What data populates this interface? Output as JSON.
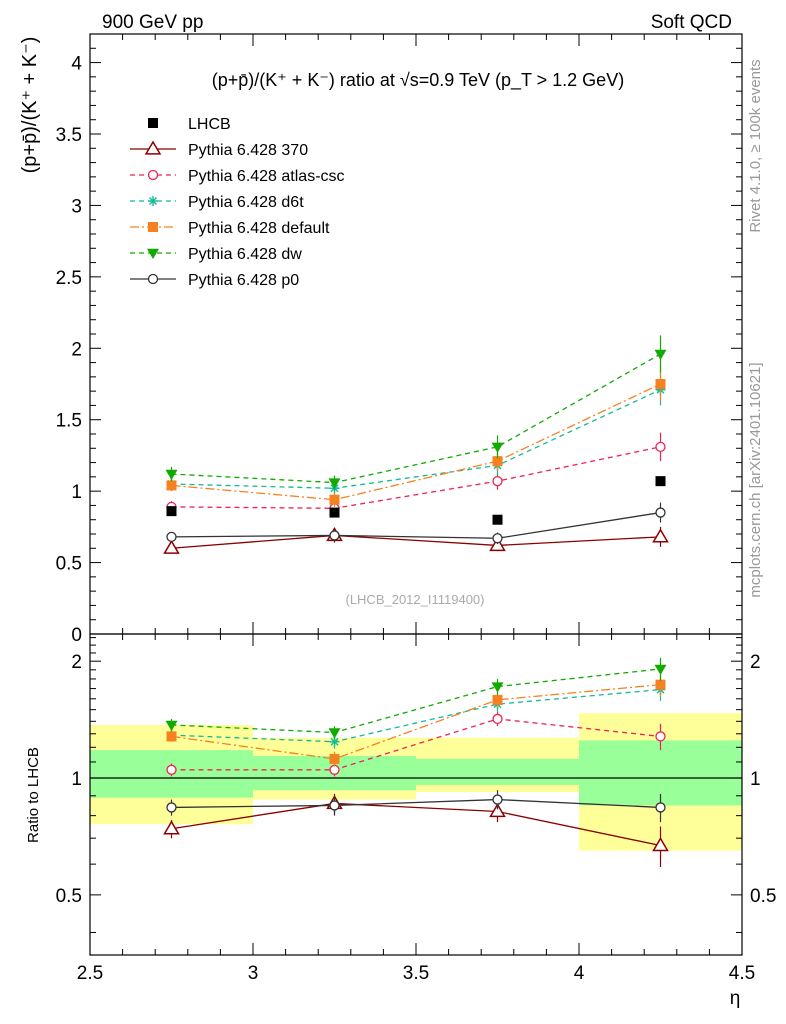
{
  "header": {
    "left": "900 GeV pp",
    "right": "Soft QCD"
  },
  "side_text": {
    "rivet": "Rivet 4.1.0, ≥ 100k events",
    "mcplots": "mcplots.cern.ch [arXiv:2401.10621]"
  },
  "chart_data": [
    {
      "type": "line",
      "title": "(p+p̄)/(K⁺ + K⁻) ratio at √s=0.9 TeV (p_T > 1.2 GeV)",
      "ylabel": "(p+p̄)/(K⁺ + K⁻)",
      "xlabel": "",
      "xlim": [
        2.5,
        4.5
      ],
      "ylim": [
        0,
        4.2
      ],
      "x_ticks": [
        "2.5",
        "3",
        "3.5",
        "4",
        "4.5"
      ],
      "y_ticks": [
        "0",
        "0.5",
        "1",
        "1.5",
        "2",
        "2.5",
        "3",
        "3.5",
        "4"
      ],
      "watermark": "(LHCB_2012_I1119400)",
      "x": [
        2.75,
        3.25,
        3.75,
        4.25
      ],
      "reference": {
        "name": "LHCB",
        "values": [
          0.86,
          0.85,
          0.8,
          1.07
        ]
      },
      "series": [
        {
          "name": "Pythia 6.428 370",
          "color": "#8b0000",
          "marker": "triangle-open",
          "dash": "",
          "values": [
            0.6,
            0.69,
            0.62,
            0.68
          ],
          "errors": [
            0.03,
            0.05,
            0.04,
            0.07
          ]
        },
        {
          "name": "Pythia 6.428 atlas-csc",
          "color": "#ee2255",
          "marker": "circle-open",
          "dash": "5,4",
          "values": [
            0.89,
            0.88,
            1.07,
            1.31
          ],
          "errors": [
            0.04,
            0.04,
            0.06,
            0.1
          ]
        },
        {
          "name": "Pythia 6.428 d6t",
          "color": "#11bb99",
          "marker": "star",
          "dash": "5,4",
          "values": [
            1.05,
            1.02,
            1.18,
            1.71
          ],
          "errors": [
            0.04,
            0.05,
            0.07,
            0.11
          ]
        },
        {
          "name": "Pythia 6.428 default",
          "color": "#f58220",
          "marker": "square",
          "dash": "9,3,2,3",
          "values": [
            1.04,
            0.94,
            1.21,
            1.75
          ],
          "errors": [
            0.04,
            0.05,
            0.07,
            0.12
          ]
        },
        {
          "name": "Pythia 6.428 dw",
          "color": "#11aa00",
          "marker": "triangle-down",
          "dash": "5,4",
          "values": [
            1.12,
            1.06,
            1.31,
            1.96
          ],
          "errors": [
            0.05,
            0.05,
            0.08,
            0.13
          ]
        },
        {
          "name": "Pythia 6.428 p0",
          "color": "#333333",
          "marker": "circle-open",
          "dash": "",
          "values": [
            0.68,
            0.69,
            0.67,
            0.85
          ],
          "errors": [
            0.03,
            0.04,
            0.04,
            0.07
          ]
        }
      ]
    },
    {
      "type": "line",
      "title": "",
      "ylabel": "Ratio to LHCB",
      "xlabel": "η",
      "xlim": [
        2.5,
        4.5
      ],
      "ylim": [
        0.35,
        2.35
      ],
      "x_ticks": [
        "2.5",
        "3",
        "3.5",
        "4",
        "4.5"
      ],
      "y_ticks": [
        "0.5",
        "1",
        "2"
      ],
      "bands": [
        {
          "x0": 2.5,
          "x1": 3.0,
          "yellow": [
            0.76,
            1.37
          ],
          "green": [
            0.89,
            1.18
          ]
        },
        {
          "x0": 3.0,
          "x1": 3.5,
          "yellow": [
            0.88,
            1.27
          ],
          "green": [
            0.93,
            1.14
          ]
        },
        {
          "x0": 3.5,
          "x1": 4.0,
          "yellow": [
            0.92,
            1.27
          ],
          "green": [
            0.96,
            1.12
          ]
        },
        {
          "x0": 4.0,
          "x1": 4.5,
          "yellow": [
            0.65,
            1.47
          ],
          "green": [
            0.85,
            1.25
          ]
        }
      ],
      "series": [
        {
          "name": "Pythia 6.428 370",
          "values": [
            0.74,
            0.86,
            0.82,
            0.67
          ],
          "errors": [
            0.04,
            0.05,
            0.05,
            0.08
          ]
        },
        {
          "name": "Pythia 6.428 atlas-csc",
          "values": [
            1.05,
            1.05,
            1.42,
            1.28
          ],
          "errors": [
            0.04,
            0.04,
            0.06,
            0.1
          ]
        },
        {
          "name": "Pythia 6.428 d6t",
          "values": [
            1.29,
            1.24,
            1.55,
            1.69
          ],
          "errors": [
            0.04,
            0.05,
            0.07,
            0.11
          ]
        },
        {
          "name": "Pythia 6.428 default",
          "values": [
            1.28,
            1.12,
            1.59,
            1.74
          ],
          "errors": [
            0.04,
            0.05,
            0.07,
            0.12
          ]
        },
        {
          "name": "Pythia 6.428 dw",
          "values": [
            1.37,
            1.31,
            1.72,
            1.91
          ],
          "errors": [
            0.05,
            0.05,
            0.08,
            0.13
          ]
        },
        {
          "name": "Pythia 6.428 p0",
          "values": [
            0.84,
            0.85,
            0.88,
            0.84
          ],
          "errors": [
            0.04,
            0.05,
            0.05,
            0.07
          ]
        }
      ]
    }
  ]
}
